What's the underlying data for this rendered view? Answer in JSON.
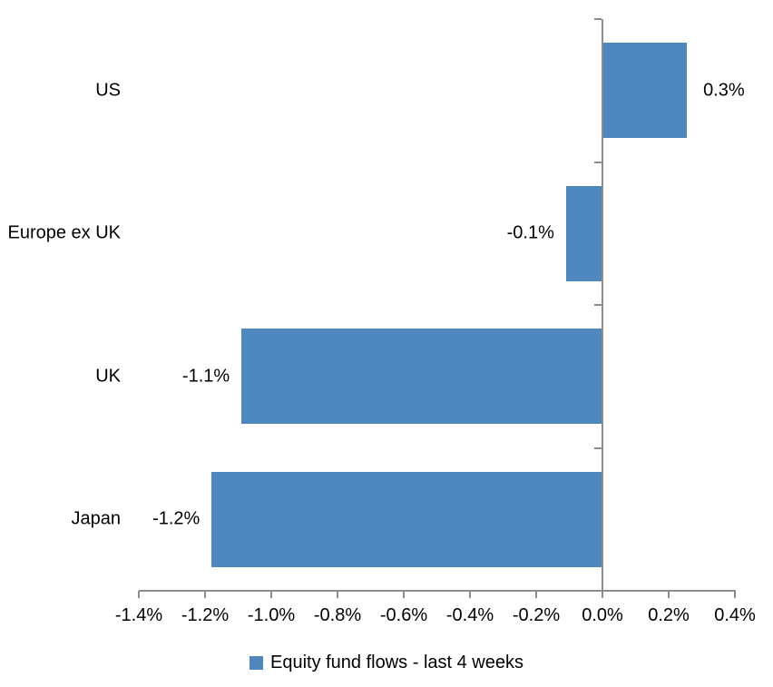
{
  "chart_data": {
    "type": "bar",
    "orientation": "horizontal",
    "title": "",
    "categories": [
      "US",
      "Europe ex UK",
      "UK",
      "Japan"
    ],
    "values": [
      0.3,
      -0.1,
      -1.1,
      -1.2
    ],
    "values_rendered": [
      0.255,
      -0.11,
      -1.09,
      -1.18
    ],
    "data_labels": [
      "0.3%",
      "-0.1%",
      "-1.1%",
      "-1.2%"
    ],
    "series_name": "Equity fund flows - last 4 weeks",
    "xlim": [
      -1.4,
      0.4
    ],
    "x_tick_step": 0.2,
    "x_tick_labels": [
      "-1.4%",
      "-1.2%",
      "-1.0%",
      "-0.8%",
      "-0.6%",
      "-0.4%",
      "-0.2%",
      "0.0%",
      "0.2%",
      "0.4%"
    ],
    "grid": false,
    "legend_position": "bottom",
    "colors": {
      "bar": "#4E88BE",
      "axis": "#8C8C8C",
      "text": "#000000",
      "background": "#FFFFFF"
    }
  },
  "legend": {
    "items": [
      {
        "label": "Equity fund flows - last 4 weeks",
        "swatch_color": "#4E88BE"
      }
    ]
  }
}
